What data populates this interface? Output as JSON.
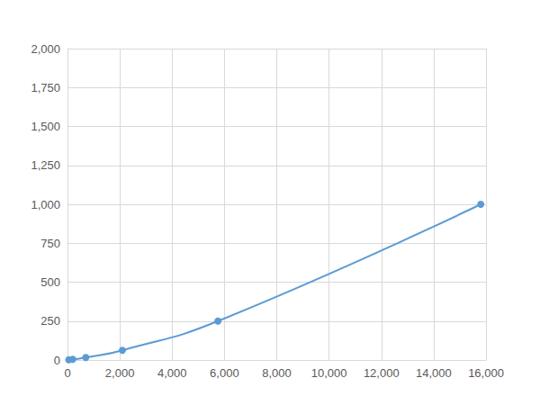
{
  "chart_data": {
    "type": "line",
    "x": [
      50,
      200,
      700,
      2100,
      5750,
      15800
    ],
    "values": [
      1,
      3.9,
      15.6,
      62.5,
      250,
      1000
    ],
    "color": "#5b9bd5",
    "marker": "circle",
    "line_style": "smooth",
    "xlim": [
      0,
      16000
    ],
    "xticks": [
      0,
      2000,
      4000,
      6000,
      8000,
      10000,
      12000,
      14000,
      16000
    ],
    "ylim": [
      0,
      2000
    ],
    "yticks": [
      0,
      250,
      500,
      750,
      1000,
      1250,
      1500,
      1750,
      2000
    ],
    "grid": true
  }
}
